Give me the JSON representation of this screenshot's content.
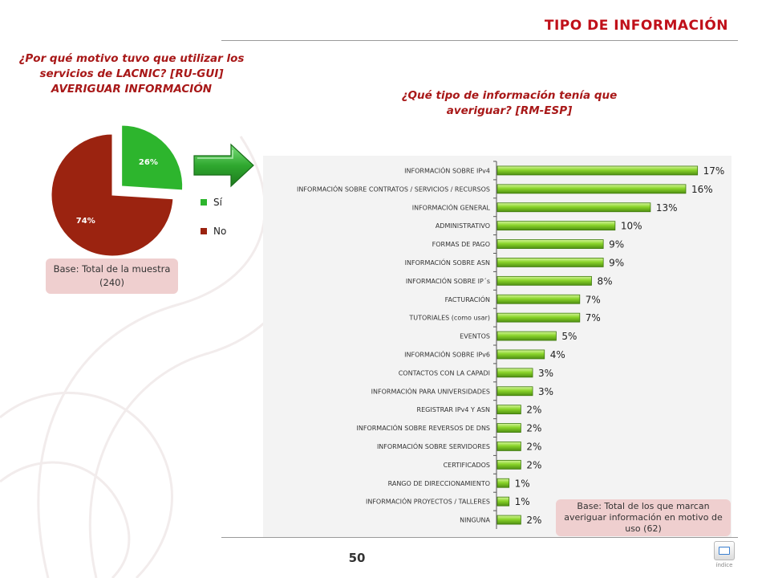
{
  "header": {
    "title": "TIPO DE INFORMACIÓN"
  },
  "question_left": "¿Por qué motivo tuvo que utilizar los servicios de LACNIC? [RU-GUI] AVERIGUAR INFORMACIÓN",
  "question_right": "¿Qué tipo de información tenía que averiguar? [RM-ESP]",
  "base_left": "Base: Total de la muestra (240)",
  "base_right": "Base: Total de los que marcan averiguar información en motivo de uso (62)",
  "page_number": "50",
  "index_label": "índice",
  "colors": {
    "accent": "#c0101a",
    "pie_si": "#2db52d",
    "pie_no": "#9b2310",
    "bar": "#8ad42a",
    "arrow": "#2fa82f"
  },
  "chart_data": [
    {
      "type": "pie",
      "slices": [
        {
          "label": "Sí",
          "value": 26,
          "value_label": "26%",
          "color": "#2db52d",
          "exploded": true
        },
        {
          "label": "No",
          "value": 74,
          "value_label": "74%",
          "color": "#9b2310",
          "exploded": false
        }
      ],
      "legend": [
        "Sí",
        "No"
      ],
      "legend_position": "right"
    },
    {
      "type": "bar",
      "orientation": "horizontal",
      "categories": [
        "INFORMACIÓN SOBRE IPv4",
        "INFORMACIÓN SOBRE CONTRATOS / SERVICIOS / RECURSOS",
        "INFORMACIÓN GENERAL",
        "ADMINISTRATIVO",
        "FORMAS DE PAGO",
        "INFORMACIÓN SOBRE ASN",
        "INFORMACIÓN SOBRE IP´s",
        "FACTURACIÓN",
        "TUTORIALES (como usar)",
        "EVENTOS",
        "INFORMACIÓN SOBRE IPv6",
        "CONTACTOS CON LA CAPADI",
        "INFORMACIÓN PARA UNIVERSIDADES",
        "REGISTRAR IPv4 Y ASN",
        "INFORMACIÓN SOBRE REVERSOS DE DNS",
        "INFORMACIÓN SOBRE SERVIDORES",
        "CERTIFICADOS",
        "RANGO DE DIRECCIONAMIENTO",
        "INFORMACIÓN PROYECTOS / TALLERES",
        "NINGUNA"
      ],
      "values": [
        17,
        16,
        13,
        10,
        9,
        9,
        8,
        7,
        7,
        5,
        4,
        3,
        3,
        2,
        2,
        2,
        2,
        1,
        1,
        2
      ],
      "value_labels": [
        "17%",
        "16%",
        "13%",
        "10%",
        "9%",
        "9%",
        "8%",
        "7%",
        "7%",
        "5%",
        "4%",
        "3%",
        "3%",
        "2%",
        "2%",
        "2%",
        "2%",
        "1%",
        "1%",
        "2%"
      ],
      "xlim": [
        0,
        17.5
      ],
      "grid": false
    }
  ]
}
